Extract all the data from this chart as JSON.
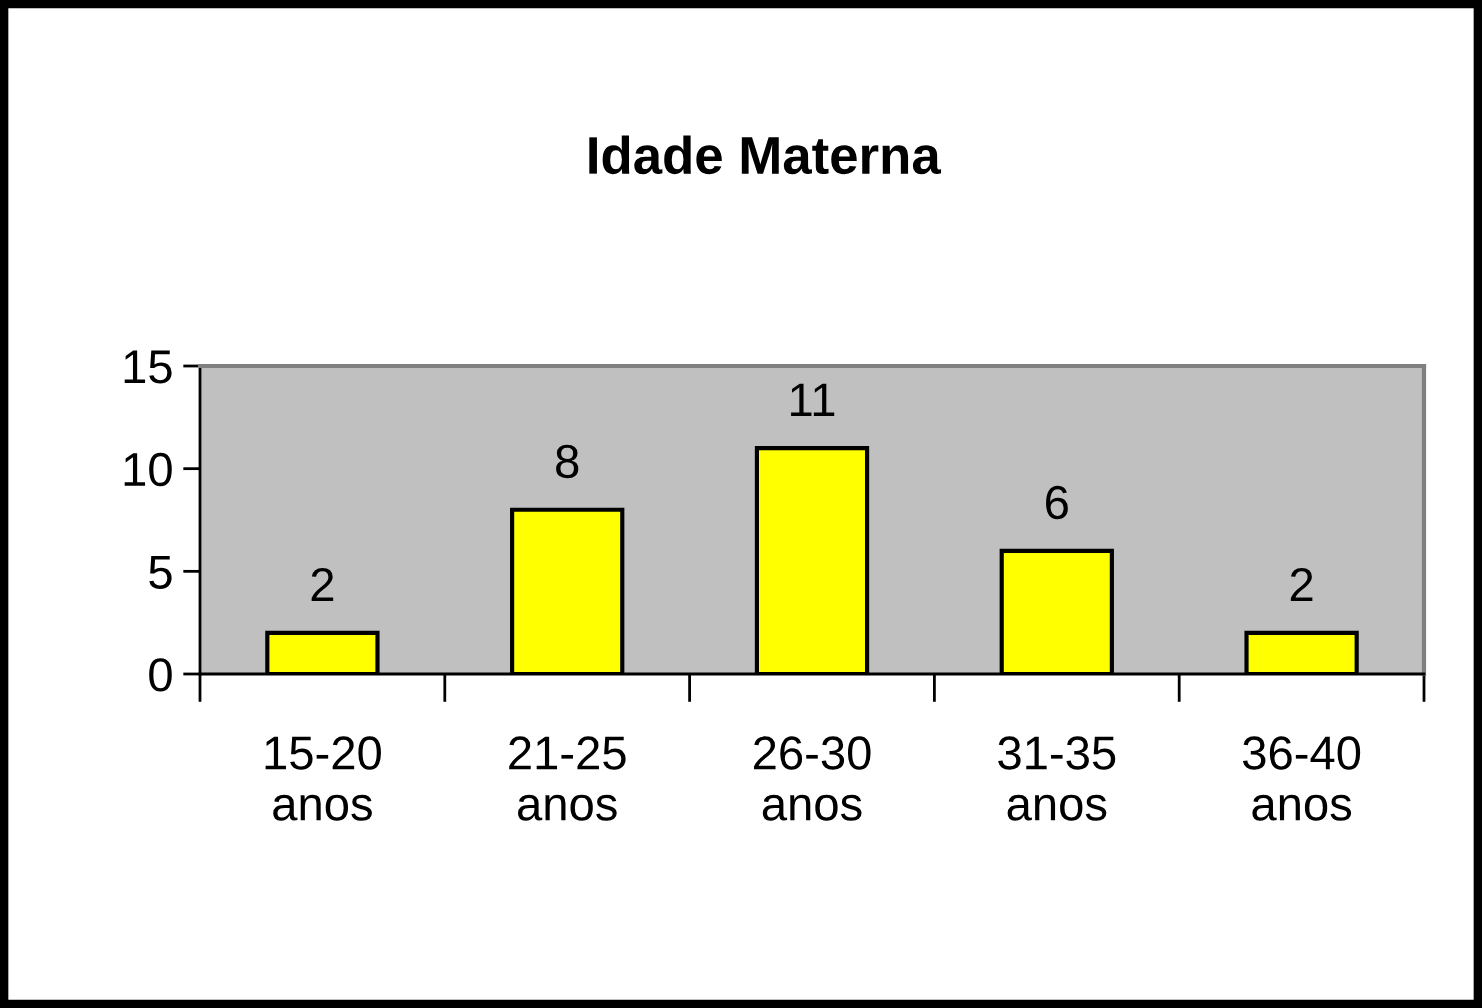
{
  "chart_data": {
    "type": "bar",
    "title": "Idade Materna",
    "categories": [
      "15-20\nanos",
      "21-25\nanos",
      "26-30\nanos",
      "31-35\nanos",
      "36-40\nanos"
    ],
    "values": [
      2,
      8,
      11,
      6,
      2
    ],
    "color": "#ffff00",
    "ylim": [
      0,
      15
    ],
    "yticks": [
      0,
      5,
      10,
      15
    ],
    "grid": false,
    "data_labels": true,
    "legend": false
  }
}
